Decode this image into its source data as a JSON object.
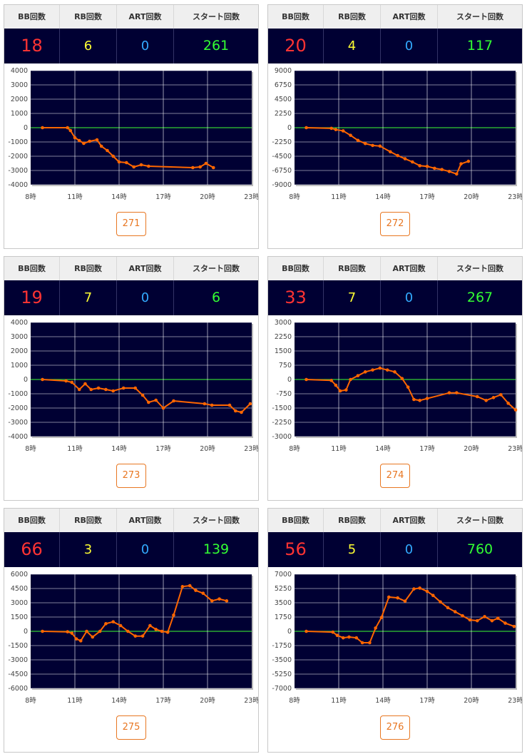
{
  "headers": {
    "bb": "BB回数",
    "rb": "RB回数",
    "art": "ART回数",
    "start": "スタート回数"
  },
  "colors": {
    "plot_bg": "#000033",
    "line": "#ff6600",
    "zero_line": "#33cc33",
    "grid": "#ffffff",
    "button": "#e87722"
  },
  "machines": [
    {
      "bb": "18",
      "rb": "6",
      "art": "0",
      "start": "261",
      "number": "271"
    },
    {
      "bb": "20",
      "rb": "4",
      "art": "0",
      "start": "117",
      "number": "272"
    },
    {
      "bb": "19",
      "rb": "7",
      "art": "0",
      "start": "6",
      "number": "273"
    },
    {
      "bb": "33",
      "rb": "7",
      "art": "0",
      "start": "267",
      "number": "274"
    },
    {
      "bb": "66",
      "rb": "3",
      "art": "0",
      "start": "139",
      "number": "275"
    },
    {
      "bb": "56",
      "rb": "5",
      "art": "0",
      "start": "760",
      "number": "276"
    }
  ],
  "chart_data": [
    {
      "type": "line",
      "x_ticks": [
        "8時",
        "11時",
        "14時",
        "17時",
        "20時",
        "23時"
      ],
      "xlim": [
        8,
        23
      ],
      "y_ticks": [
        "4000",
        "3000",
        "2000",
        "1000",
        "0",
        "-1000",
        "-2000",
        "-3000",
        "-4000"
      ],
      "ylim": [
        -4000,
        4000
      ],
      "series": [
        {
          "points": [
            [
              8.8,
              0
            ],
            [
              10.5,
              0
            ],
            [
              10.7,
              -200
            ],
            [
              11,
              -700
            ],
            [
              11.3,
              -900
            ],
            [
              11.6,
              -1100
            ],
            [
              12,
              -950
            ],
            [
              12.5,
              -850
            ],
            [
              12.8,
              -1300
            ],
            [
              13.2,
              -1600
            ],
            [
              13.6,
              -2000
            ],
            [
              14,
              -2400
            ],
            [
              14.5,
              -2450
            ],
            [
              15,
              -2750
            ],
            [
              15.5,
              -2600
            ],
            [
              16,
              -2700
            ],
            [
              19,
              -2800
            ],
            [
              19.5,
              -2750
            ],
            [
              19.9,
              -2500
            ],
            [
              20.4,
              -2800
            ]
          ]
        }
      ]
    },
    {
      "type": "line",
      "x_ticks": [
        "8時",
        "11時",
        "14時",
        "17時",
        "20時",
        "23時"
      ],
      "xlim": [
        8,
        23
      ],
      "y_ticks": [
        "9000",
        "6750",
        "4500",
        "2250",
        "0",
        "-2250",
        "-4500",
        "-6750",
        "-9000"
      ],
      "ylim": [
        -9000,
        9000
      ],
      "series": [
        {
          "points": [
            [
              8.8,
              0
            ],
            [
              10.5,
              -100
            ],
            [
              10.8,
              -300
            ],
            [
              11.3,
              -500
            ],
            [
              11.8,
              -1200
            ],
            [
              12.3,
              -2000
            ],
            [
              12.8,
              -2500
            ],
            [
              13.3,
              -2800
            ],
            [
              13.8,
              -2900
            ],
            [
              14.5,
              -3800
            ],
            [
              15,
              -4400
            ],
            [
              15.5,
              -4900
            ],
            [
              16,
              -5400
            ],
            [
              16.5,
              -6000
            ],
            [
              17,
              -6100
            ],
            [
              17.5,
              -6400
            ],
            [
              18,
              -6600
            ],
            [
              18.5,
              -6900
            ],
            [
              19,
              -7300
            ],
            [
              19.3,
              -5700
            ],
            [
              19.8,
              -5300
            ]
          ]
        }
      ]
    },
    {
      "type": "line",
      "x_ticks": [
        "8時",
        "11時",
        "14時",
        "17時",
        "20時",
        "23時"
      ],
      "xlim": [
        8,
        23
      ],
      "y_ticks": [
        "4000",
        "3000",
        "2000",
        "1000",
        "0",
        "-1000",
        "-2000",
        "-3000",
        "-4000"
      ],
      "ylim": [
        -4000,
        4000
      ],
      "series": [
        {
          "points": [
            [
              8.8,
              0
            ],
            [
              10.4,
              -100
            ],
            [
              10.8,
              -200
            ],
            [
              11.3,
              -700
            ],
            [
              11.7,
              -300
            ],
            [
              12.1,
              -700
            ],
            [
              12.6,
              -600
            ],
            [
              13.1,
              -700
            ],
            [
              13.6,
              -800
            ],
            [
              14.3,
              -600
            ],
            [
              15.1,
              -600
            ],
            [
              15.6,
              -1100
            ],
            [
              16,
              -1600
            ],
            [
              16.5,
              -1450
            ],
            [
              17,
              -2000
            ],
            [
              17.7,
              -1500
            ],
            [
              19.8,
              -1700
            ],
            [
              20.3,
              -1800
            ],
            [
              21.5,
              -1800
            ],
            [
              21.9,
              -2200
            ],
            [
              22.3,
              -2300
            ],
            [
              22.9,
              -1700
            ]
          ]
        }
      ]
    },
    {
      "type": "line",
      "x_ticks": [
        "8時",
        "11時",
        "14時",
        "17時",
        "20時",
        "23時"
      ],
      "xlim": [
        8,
        23
      ],
      "y_ticks": [
        "3000",
        "2250",
        "1500",
        "750",
        "0",
        "-750",
        "-1500",
        "-2250",
        "-3000"
      ],
      "ylim": [
        -3000,
        3000
      ],
      "series": [
        {
          "points": [
            [
              8.8,
              0
            ],
            [
              10.5,
              -50
            ],
            [
              10.8,
              -300
            ],
            [
              11.1,
              -600
            ],
            [
              11.5,
              -550
            ],
            [
              11.8,
              0
            ],
            [
              12.3,
              200
            ],
            [
              12.8,
              400
            ],
            [
              13.3,
              500
            ],
            [
              13.8,
              600
            ],
            [
              14.3,
              500
            ],
            [
              14.8,
              400
            ],
            [
              15.3,
              50
            ],
            [
              15.7,
              -400
            ],
            [
              16.1,
              -1050
            ],
            [
              16.5,
              -1100
            ],
            [
              17,
              -1000
            ],
            [
              18.5,
              -700
            ],
            [
              19,
              -700
            ],
            [
              20.4,
              -900
            ],
            [
              21,
              -1100
            ],
            [
              21.5,
              -950
            ],
            [
              22,
              -800
            ],
            [
              22.5,
              -1250
            ],
            [
              23,
              -1600
            ]
          ]
        }
      ]
    },
    {
      "type": "line",
      "x_ticks": [
        "8時",
        "11時",
        "14時",
        "17時",
        "20時",
        "23時"
      ],
      "xlim": [
        8,
        23
      ],
      "y_ticks": [
        "6000",
        "4500",
        "3000",
        "1500",
        "0",
        "-1500",
        "-3000",
        "-4500",
        "-6000"
      ],
      "ylim": [
        -6000,
        6000
      ],
      "series": [
        {
          "points": [
            [
              8.8,
              0
            ],
            [
              10.5,
              -50
            ],
            [
              10.8,
              -200
            ],
            [
              11.1,
              -800
            ],
            [
              11.4,
              -1000
            ],
            [
              11.8,
              0
            ],
            [
              12.2,
              -600
            ],
            [
              12.7,
              0
            ],
            [
              13.1,
              800
            ],
            [
              13.6,
              1000
            ],
            [
              14.1,
              600
            ],
            [
              14.6,
              0
            ],
            [
              15.1,
              -500
            ],
            [
              15.6,
              -500
            ],
            [
              16.1,
              600
            ],
            [
              16.5,
              200
            ],
            [
              16.9,
              0
            ],
            [
              17.3,
              -100
            ],
            [
              17.7,
              1700
            ],
            [
              18.3,
              4700
            ],
            [
              18.8,
              4800
            ],
            [
              19.2,
              4300
            ],
            [
              19.7,
              4000
            ],
            [
              20.3,
              3200
            ],
            [
              20.8,
              3400
            ],
            [
              21.3,
              3200
            ]
          ]
        }
      ]
    },
    {
      "type": "line",
      "x_ticks": [
        "8時",
        "11時",
        "14時",
        "17時",
        "20時",
        "23時"
      ],
      "xlim": [
        8,
        23
      ],
      "y_ticks": [
        "7000",
        "5250",
        "3500",
        "1750",
        "0",
        "-1750",
        "-3500",
        "-5250",
        "-7000"
      ],
      "ylim": [
        -7000,
        7000
      ],
      "series": [
        {
          "points": [
            [
              8.8,
              0
            ],
            [
              10.6,
              -100
            ],
            [
              10.9,
              -500
            ],
            [
              11.3,
              -800
            ],
            [
              11.7,
              -700
            ],
            [
              12.2,
              -800
            ],
            [
              12.6,
              -1400
            ],
            [
              13.1,
              -1400
            ],
            [
              13.5,
              400
            ],
            [
              13.9,
              1700
            ],
            [
              14.4,
              4200
            ],
            [
              15,
              4100
            ],
            [
              15.5,
              3700
            ],
            [
              16.1,
              5200
            ],
            [
              16.5,
              5300
            ],
            [
              17,
              4900
            ],
            [
              17.4,
              4400
            ],
            [
              17.9,
              3600
            ],
            [
              18.4,
              2900
            ],
            [
              18.9,
              2400
            ],
            [
              19.4,
              1900
            ],
            [
              19.9,
              1400
            ],
            [
              20.4,
              1300
            ],
            [
              20.9,
              1800
            ],
            [
              21.4,
              1300
            ],
            [
              21.8,
              1600
            ],
            [
              22.3,
              1000
            ],
            [
              22.9,
              600
            ]
          ]
        }
      ]
    }
  ]
}
